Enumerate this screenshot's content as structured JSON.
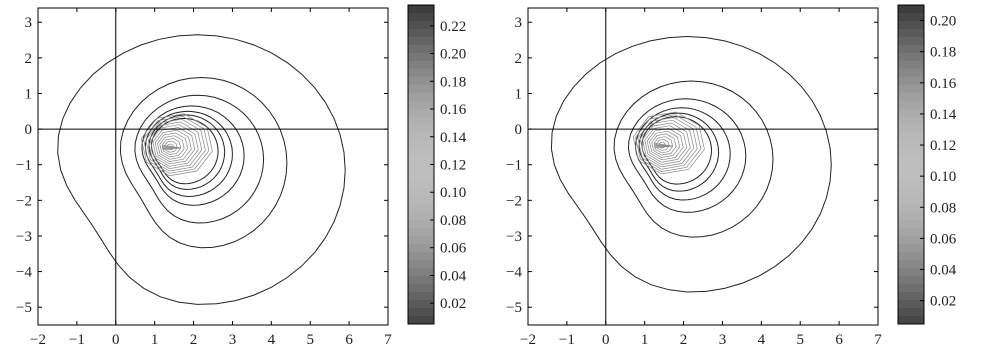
{
  "chart_data": [
    {
      "type": "contour",
      "title": "",
      "xlabel": "",
      "ylabel": "",
      "xlim": [
        -2,
        7
      ],
      "ylim": [
        -5.5,
        3.4
      ],
      "x_ticks": [
        "−2",
        "−1",
        "0",
        "1",
        "2",
        "3",
        "4",
        "5",
        "6",
        "7"
      ],
      "y_ticks": [
        "3",
        "2",
        "1",
        "0",
        "−1",
        "−2",
        "−3",
        "−4",
        "−5"
      ],
      "colorbar": {
        "range": [
          0.005,
          0.235
        ],
        "ticks": [
          "0.22",
          "0.20",
          "0.18",
          "0.16",
          "0.14",
          "0.12",
          "0.10",
          "0.08",
          "0.06",
          "0.04",
          "0.02"
        ],
        "tick_values": [
          0.22,
          0.2,
          0.18,
          0.16,
          0.14,
          0.12,
          0.1,
          0.08,
          0.06,
          0.04,
          0.02
        ]
      },
      "peak": {
        "x": 1.4,
        "y": -0.5
      },
      "contours": [
        {
          "cx": 2.1,
          "cy": -1.15,
          "rx": 3.8,
          "ry": 3.8
        },
        {
          "cx": 2.2,
          "cy": -0.95,
          "rx": 2.2,
          "ry": 2.4
        },
        {
          "cx": 2.1,
          "cy": -0.85,
          "rx": 1.7,
          "ry": 1.8
        },
        {
          "cx": 1.95,
          "cy": -0.75,
          "rx": 1.35,
          "ry": 1.4
        },
        {
          "cx": 1.85,
          "cy": -0.7,
          "rx": 1.15,
          "ry": 1.2
        },
        {
          "cx": 1.8,
          "cy": -0.65,
          "rx": 1.0,
          "ry": 1.05
        },
        {
          "cx": 1.75,
          "cy": -0.62,
          "rx": 0.88,
          "ry": 0.92
        }
      ],
      "grey_levels": 12
    },
    {
      "type": "contour",
      "title": "",
      "xlabel": "",
      "ylabel": "",
      "xlim": [
        -2,
        7
      ],
      "ylim": [
        -5.5,
        3.4
      ],
      "x_ticks": [
        "−2",
        "−1",
        "0",
        "1",
        "2",
        "3",
        "4",
        "5",
        "6",
        "7"
      ],
      "y_ticks": [
        "3",
        "2",
        "1",
        "0",
        "−1",
        "−2",
        "−3",
        "−4",
        "−5"
      ],
      "colorbar": {
        "range": [
          0.005,
          0.21
        ],
        "ticks": [
          "0.20",
          "0.18",
          "0.16",
          "0.14",
          "0.12",
          "0.10",
          "0.08",
          "0.06",
          "0.04",
          "0.02"
        ],
        "tick_values": [
          0.2,
          0.18,
          0.16,
          0.14,
          0.12,
          0.1,
          0.08,
          0.06,
          0.04,
          0.02
        ]
      },
      "peak": {
        "x": 1.45,
        "y": -0.45
      },
      "contours": [
        {
          "cx": 2.1,
          "cy": -1.0,
          "rx": 3.7,
          "ry": 3.6
        },
        {
          "cx": 2.2,
          "cy": -0.85,
          "rx": 2.1,
          "ry": 2.2
        },
        {
          "cx": 2.05,
          "cy": -0.75,
          "rx": 1.55,
          "ry": 1.6
        },
        {
          "cx": 1.95,
          "cy": -0.7,
          "rx": 1.25,
          "ry": 1.3
        },
        {
          "cx": 1.85,
          "cy": -0.65,
          "rx": 1.05,
          "ry": 1.1
        },
        {
          "cx": 1.8,
          "cy": -0.6,
          "rx": 0.92,
          "ry": 0.95
        }
      ],
      "grey_levels": 12
    }
  ]
}
